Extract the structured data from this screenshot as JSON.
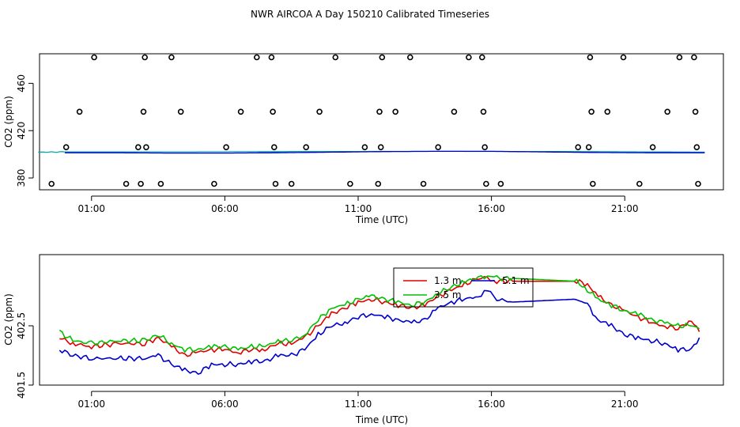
{
  "title": "NWR AIRCOA A  Day 150210  Calibrated Timeseries",
  "colors": {
    "red": "#e00000",
    "green": "#00c000",
    "blue": "#0000cc",
    "teal": "#00aaaa",
    "magenta": "#cc00cc"
  },
  "chart_data": [
    {
      "type": "scatter",
      "xlabel": "Time (UTC)",
      "ylabel": "CO2 (ppm)",
      "xticks": [
        "01:00",
        "06:00",
        "11:00",
        "16:00",
        "21:00"
      ],
      "yticks": [
        "380",
        "420",
        "460"
      ],
      "xlim": [
        -0.95,
        24.7
      ],
      "ylim": [
        370,
        485
      ],
      "marker_series": {
        "x": [
          -0.5,
          0.05,
          0.55,
          1.1,
          2.3,
          2.75,
          2.85,
          2.95,
          3.0,
          3.05,
          4.0,
          3.6,
          4.35,
          5.6,
          6.05,
          6.6,
          7.2,
          7.75,
          7.8,
          7.85,
          7.9,
          8.5,
          9.05,
          9.55,
          10.15,
          10.7,
          11.25,
          11.75,
          11.8,
          11.85,
          11.9,
          12.4,
          12.95,
          13.45,
          14.0,
          14.6,
          15.15,
          15.65,
          15.7,
          15.75,
          15.8,
          16.35,
          19.25,
          19.65,
          19.7,
          19.75,
          19.8,
          20.35,
          20.95,
          21.55,
          22.05,
          22.6,
          23.05,
          23.6,
          23.65,
          23.7,
          23.75
        ],
        "y": [
          375,
          406,
          436,
          482,
          375,
          406,
          375,
          436,
          482,
          406,
          482,
          375,
          436,
          375,
          406,
          436,
          482,
          482,
          436,
          406,
          375,
          375,
          406,
          436,
          482,
          375,
          406,
          375,
          436,
          406,
          482,
          436,
          482,
          375,
          406,
          436,
          482,
          482,
          436,
          406,
          375,
          375,
          406,
          406,
          482,
          436,
          375,
          436,
          482,
          375,
          406,
          436,
          482,
          482,
          436,
          406,
          375
        ]
      },
      "baseline_series": [
        {
          "color": "teal",
          "x": [
            -1,
            0,
            4,
            9,
            14,
            19,
            24
          ],
          "values": [
            401.8,
            402.0,
            402.0,
            402.3,
            402.5,
            402.3,
            401.8
          ]
        },
        {
          "color": "blue",
          "x": [
            0,
            2,
            4,
            6,
            8,
            10,
            12,
            14,
            16,
            18,
            20,
            22,
            24
          ],
          "values": [
            401.3,
            401.3,
            401.0,
            401.0,
            401.3,
            401.8,
            402.3,
            402.5,
            402.5,
            402.0,
            401.5,
            401.3,
            401.3
          ]
        }
      ]
    },
    {
      "type": "line",
      "xlabel": "Time (UTC)",
      "ylabel": "CO2 (ppm)",
      "xticks": [
        "01:00",
        "06:00",
        "11:00",
        "16:00",
        "21:00"
      ],
      "yticks": [
        "401.5",
        "402.5"
      ],
      "xlim": [
        -0.95,
        24.7
      ],
      "ylim": [
        401.5,
        403.7
      ],
      "legend": {
        "position": "top-center",
        "entries": [
          "1.3 m",
          "5.1 m",
          "3.5 m"
        ]
      },
      "series": [
        {
          "name": "1.3 m",
          "color": "red",
          "x": [
            -0.2,
            0.3,
            1.0,
            2.0,
            3.0,
            3.5,
            4.0,
            4.5,
            5.0,
            5.5,
            6.0,
            6.5,
            7.0,
            7.5,
            8.0,
            8.5,
            9.0,
            9.5,
            10.0,
            10.5,
            11.0,
            11.5,
            12.0,
            12.5,
            13.0,
            13.5,
            14.0,
            14.5,
            15.0,
            15.5,
            15.85,
            16.2,
            16.8,
            19.2,
            19.6,
            20.0,
            20.5,
            21.0,
            21.5,
            22.0,
            22.5,
            23.0,
            23.5,
            23.8
          ],
          "values": [
            402.3,
            402.2,
            402.15,
            402.2,
            402.2,
            402.3,
            402.15,
            402.0,
            402.05,
            402.1,
            402.1,
            402.05,
            402.1,
            402.1,
            402.2,
            402.2,
            402.3,
            402.5,
            402.7,
            402.8,
            402.9,
            402.95,
            402.9,
            402.85,
            402.8,
            402.85,
            403.0,
            403.1,
            403.2,
            403.3,
            403.3,
            403.25,
            403.25,
            403.25,
            403.2,
            403.0,
            402.85,
            402.75,
            402.65,
            402.55,
            402.5,
            402.45,
            402.6,
            402.4
          ]
        },
        {
          "name": "3.5 m",
          "color": "green",
          "x": [
            -0.2,
            0.3,
            1.0,
            2.0,
            3.0,
            3.5,
            4.0,
            4.5,
            5.0,
            5.5,
            6.0,
            6.5,
            7.0,
            7.5,
            8.0,
            8.5,
            9.0,
            9.5,
            10.0,
            10.5,
            11.0,
            11.5,
            12.0,
            12.5,
            13.0,
            13.5,
            14.0,
            14.5,
            15.0,
            15.5,
            15.85,
            16.2,
            16.8,
            19.2,
            19.6,
            20.0,
            20.5,
            21.0,
            21.5,
            22.0,
            22.5,
            23.0,
            23.5,
            23.8
          ],
          "values": [
            402.4,
            402.25,
            402.2,
            402.25,
            402.25,
            402.35,
            402.2,
            402.1,
            402.1,
            402.15,
            402.15,
            402.1,
            402.15,
            402.15,
            402.25,
            402.25,
            402.35,
            402.6,
            402.8,
            402.85,
            402.95,
            403.0,
            402.95,
            402.9,
            402.85,
            402.9,
            403.05,
            403.15,
            403.25,
            403.3,
            403.35,
            403.3,
            403.3,
            403.25,
            403.1,
            402.95,
            402.85,
            402.75,
            402.7,
            402.6,
            402.55,
            402.5,
            402.5,
            402.45
          ]
        },
        {
          "name": "5.1 m",
          "color": "blue",
          "x": [
            -0.2,
            0.3,
            1.0,
            2.0,
            3.0,
            3.5,
            4.0,
            4.5,
            5.0,
            5.5,
            6.0,
            6.5,
            7.0,
            7.5,
            8.0,
            8.5,
            9.0,
            9.5,
            10.0,
            10.5,
            11.0,
            11.5,
            12.0,
            12.5,
            13.0,
            13.5,
            14.0,
            14.5,
            15.0,
            15.5,
            15.85,
            16.2,
            16.8,
            19.2,
            19.6,
            20.0,
            20.5,
            21.0,
            21.5,
            22.0,
            22.5,
            23.0,
            23.5,
            23.8
          ],
          "values": [
            402.1,
            402.0,
            401.95,
            401.95,
            401.95,
            402.0,
            401.85,
            401.75,
            401.7,
            401.85,
            401.85,
            401.85,
            401.9,
            401.9,
            402.0,
            402.0,
            402.1,
            402.35,
            402.5,
            402.55,
            402.65,
            402.7,
            402.65,
            402.6,
            402.55,
            402.6,
            402.8,
            402.9,
            402.95,
            403.0,
            403.1,
            402.95,
            402.9,
            402.95,
            402.85,
            402.6,
            402.5,
            402.35,
            402.3,
            402.25,
            402.2,
            402.1,
            402.1,
            402.3
          ]
        }
      ]
    }
  ]
}
